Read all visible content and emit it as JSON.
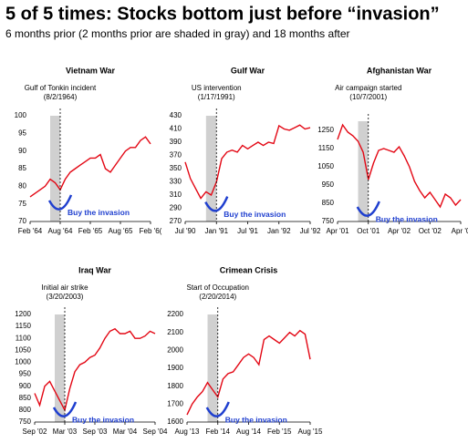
{
  "header": {
    "title": "5 of 5 times: Stocks bottom just before “invasion”",
    "subtitle": "6 months prior (2 months prior are shaded in gray) and 18 months after"
  },
  "chart_data": [
    {
      "type": "line",
      "title": "Vietnam War",
      "annotation": [
        "Gulf of Tonkin incident",
        "(8/2/1964)"
      ],
      "callout": "Buy the invasion",
      "x": [
        0,
        1,
        2,
        3,
        4,
        5,
        6,
        7,
        8,
        9,
        10,
        11,
        12,
        13,
        14,
        15,
        16,
        17,
        18,
        19,
        20,
        21,
        22,
        23,
        24
      ],
      "series": [
        {
          "color": "#e30613",
          "values": [
            77,
            78,
            79,
            80,
            82,
            81,
            79,
            82,
            84,
            85,
            86,
            87,
            88,
            88,
            89,
            85,
            84,
            86,
            88,
            90,
            91,
            91,
            93,
            94,
            92
          ]
        }
      ],
      "xlim": [
        0,
        24
      ],
      "xticks": [
        {
          "value": 0,
          "label": "Feb '64"
        },
        {
          "value": 6,
          "label": "Aug '64"
        },
        {
          "value": 12,
          "label": "Feb '65"
        },
        {
          "value": 18,
          "label": "Aug '65"
        },
        {
          "value": 24,
          "label": "Feb '6("
        }
      ],
      "ylim": [
        70,
        100
      ],
      "yticks": [
        70,
        75,
        80,
        85,
        90,
        95,
        100
      ],
      "shade": [
        4,
        6
      ],
      "event_x": 6
    },
    {
      "type": "line",
      "title": "Gulf War",
      "annotation": [
        "US intervention",
        "(1/17/1991)"
      ],
      "callout": "Buy the invasion",
      "x": [
        0,
        1,
        2,
        3,
        4,
        5,
        6,
        7,
        8,
        9,
        10,
        11,
        12,
        13,
        14,
        15,
        16,
        17,
        18,
        19,
        20,
        21,
        22,
        23,
        24
      ],
      "series": [
        {
          "color": "#e30613",
          "values": [
            360,
            335,
            320,
            305,
            315,
            310,
            330,
            365,
            375,
            378,
            375,
            385,
            380,
            385,
            390,
            385,
            390,
            388,
            415,
            410,
            408,
            412,
            416,
            410,
            412
          ]
        }
      ],
      "xlim": [
        0,
        24
      ],
      "xticks": [
        {
          "value": 0,
          "label": "Jul '90"
        },
        {
          "value": 6,
          "label": "Jan '91"
        },
        {
          "value": 12,
          "label": "Jul '91"
        },
        {
          "value": 18,
          "label": "Jan '92"
        },
        {
          "value": 24,
          "label": "Jul '92"
        }
      ],
      "ylim": [
        270,
        430
      ],
      "yticks": [
        270,
        290,
        310,
        330,
        350,
        370,
        390,
        410,
        430
      ],
      "shade": [
        4,
        6
      ],
      "event_x": 6
    },
    {
      "type": "line",
      "title": "Afghanistan War",
      "annotation": [
        "Air campaign started",
        "(10/7/2001)"
      ],
      "callout": "Buy the invasion",
      "x": [
        0,
        1,
        2,
        3,
        4,
        5,
        6,
        7,
        8,
        9,
        10,
        11,
        12,
        13,
        14,
        15,
        16,
        17,
        18,
        19,
        20,
        21,
        22,
        23,
        24
      ],
      "series": [
        {
          "color": "#e30613",
          "values": [
            1200,
            1280,
            1240,
            1220,
            1190,
            1130,
            980,
            1070,
            1140,
            1150,
            1140,
            1130,
            1160,
            1110,
            1050,
            970,
            920,
            880,
            910,
            870,
            830,
            900,
            880,
            840,
            870
          ]
        }
      ],
      "xlim": [
        0,
        24
      ],
      "xticks": [
        {
          "value": 0,
          "label": "Apr '01"
        },
        {
          "value": 6,
          "label": "Oct '01"
        },
        {
          "value": 12,
          "label": "Apr '02"
        },
        {
          "value": 18,
          "label": "Oct '02"
        },
        {
          "value": 24,
          "label": "Apr '0"
        }
      ],
      "ylim": [
        750,
        1300
      ],
      "yticks": [
        750,
        850,
        950,
        1050,
        1150,
        1250
      ],
      "shade": [
        4,
        6
      ],
      "event_x": 6
    },
    {
      "type": "line",
      "title": "Iraq War",
      "annotation": [
        "Initial air strike",
        "(3/20/2003)"
      ],
      "callout": "Buy the invasion",
      "x": [
        0,
        1,
        2,
        3,
        4,
        5,
        6,
        7,
        8,
        9,
        10,
        11,
        12,
        13,
        14,
        15,
        16,
        17,
        18,
        19,
        20,
        21,
        22,
        23,
        24
      ],
      "series": [
        {
          "color": "#e30613",
          "values": [
            870,
            820,
            900,
            920,
            880,
            840,
            800,
            890,
            960,
            990,
            1000,
            1020,
            1030,
            1060,
            1100,
            1130,
            1140,
            1120,
            1120,
            1130,
            1100,
            1100,
            1110,
            1130,
            1120
          ]
        }
      ],
      "xlim": [
        0,
        24
      ],
      "xticks": [
        {
          "value": 0,
          "label": "Sep '02"
        },
        {
          "value": 6,
          "label": "Mar '03"
        },
        {
          "value": 12,
          "label": "Sep '03"
        },
        {
          "value": 18,
          "label": "Mar '04"
        },
        {
          "value": 24,
          "label": "Sep '04"
        }
      ],
      "ylim": [
        750,
        1200
      ],
      "yticks": [
        750,
        800,
        850,
        900,
        950,
        1000,
        1050,
        1100,
        1150,
        1200
      ],
      "shade": [
        4,
        6
      ],
      "event_x": 6
    },
    {
      "type": "line",
      "title": "Crimean Crisis",
      "annotation": [
        "Start of Occupation",
        "(2/20/2014)"
      ],
      "callout": "Buy the invasion",
      "x": [
        0,
        1,
        2,
        3,
        4,
        5,
        6,
        7,
        8,
        9,
        10,
        11,
        12,
        13,
        14,
        15,
        16,
        17,
        18,
        19,
        20,
        21,
        22,
        23,
        24
      ],
      "series": [
        {
          "color": "#e30613",
          "values": [
            1640,
            1700,
            1740,
            1770,
            1820,
            1780,
            1740,
            1840,
            1870,
            1880,
            1920,
            1960,
            1980,
            1960,
            1920,
            2060,
            2080,
            2060,
            2040,
            2070,
            2100,
            2080,
            2110,
            2090,
            1950
          ]
        }
      ],
      "xlim": [
        0,
        24
      ],
      "xticks": [
        {
          "value": 0,
          "label": "Aug '13"
        },
        {
          "value": 6,
          "label": "Feb '14"
        },
        {
          "value": 12,
          "label": "Aug '14"
        },
        {
          "value": 18,
          "label": "Feb '15"
        },
        {
          "value": 24,
          "label": "Aug '15"
        }
      ],
      "ylim": [
        1600,
        2200
      ],
      "yticks": [
        1600,
        1700,
        1800,
        1900,
        2000,
        2100,
        2200
      ],
      "shade": [
        4,
        6
      ],
      "event_x": 6
    }
  ]
}
